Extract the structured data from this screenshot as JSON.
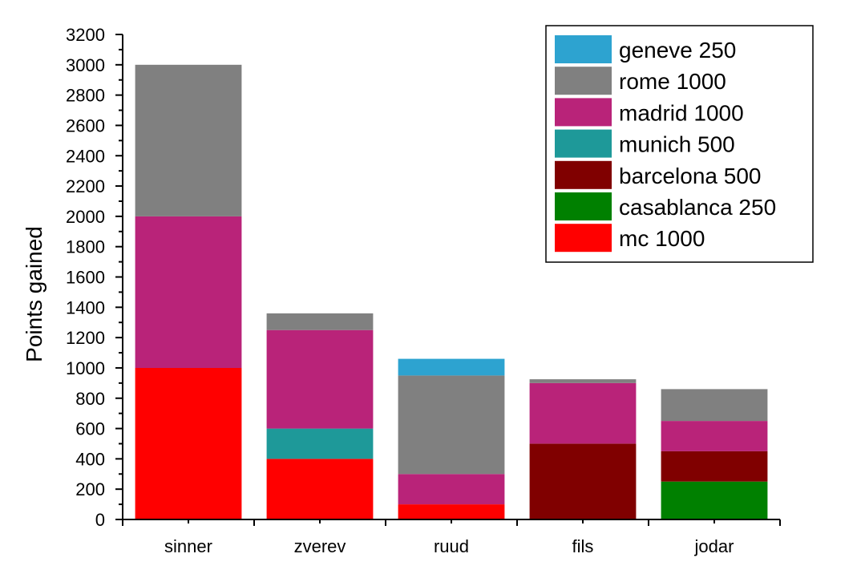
{
  "chart_data": {
    "type": "bar",
    "stacked": true,
    "title": "",
    "xlabel": "",
    "ylabel": "Points gained",
    "ylim": [
      0,
      3200
    ],
    "yticks": [
      0,
      200,
      400,
      600,
      800,
      1000,
      1200,
      1400,
      1600,
      1800,
      2000,
      2200,
      2400,
      2600,
      2800,
      3000,
      3200
    ],
    "grid": false,
    "legend_position": "top-right",
    "categories": [
      "sinner",
      "zverev",
      "ruud",
      "fils",
      "jodar"
    ],
    "series": [
      {
        "name": "mc 1000",
        "color": "#ff0000",
        "values": [
          1000,
          400,
          100,
          0,
          0
        ]
      },
      {
        "name": "casablanca 250",
        "color": "#008000",
        "values": [
          0,
          0,
          0,
          0,
          250
        ]
      },
      {
        "name": "barcelona 500",
        "color": "#800000",
        "values": [
          0,
          0,
          0,
          500,
          200
        ]
      },
      {
        "name": "munich 500",
        "color": "#1e9999",
        "values": [
          0,
          200,
          0,
          0,
          0
        ]
      },
      {
        "name": "madrid 1000",
        "color": "#b92379",
        "values": [
          1000,
          650,
          200,
          400,
          200
        ]
      },
      {
        "name": "rome 1000",
        "color": "#808080",
        "values": [
          1000,
          110,
          650,
          25,
          210
        ]
      },
      {
        "name": "geneve 250",
        "color": "#2da3d0",
        "values": [
          0,
          0,
          110,
          0,
          0
        ]
      }
    ]
  }
}
